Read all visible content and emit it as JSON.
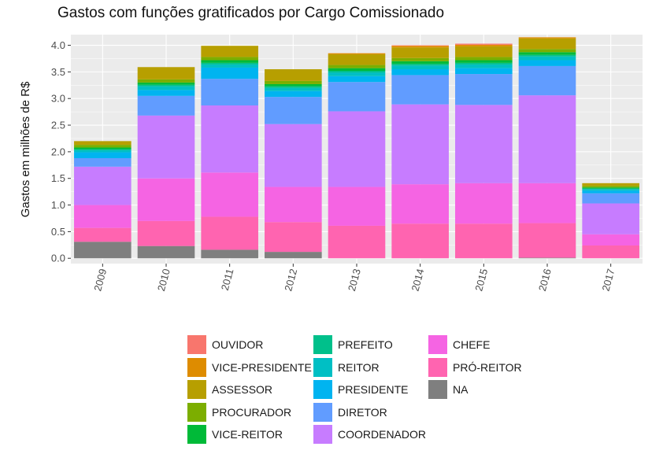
{
  "chart_data": {
    "type": "bar",
    "stacked": true,
    "title": "Gastos com funções gratificados por Cargo Comissionado",
    "xlabel": "",
    "ylabel": "Gastos em milhões de R$",
    "ylim": [
      -0.1,
      4.2
    ],
    "yticks": [
      "0.0",
      "0.5",
      "1.0",
      "1.5",
      "2.0",
      "2.5",
      "3.0",
      "3.5",
      "4.0"
    ],
    "categories": [
      "2009",
      "2010",
      "2011",
      "2012",
      "2013",
      "2014",
      "2015",
      "2016",
      "2017"
    ],
    "grid": true,
    "legend_position": "bottom",
    "series": [
      {
        "name": "OUVIDOR",
        "color": "#F8766D",
        "values": [
          0,
          0,
          0,
          0,
          0,
          0.01,
          0.02,
          0,
          0
        ]
      },
      {
        "name": "VICE-PRESIDENTE",
        "color": "#DE8C00",
        "values": [
          0,
          0,
          0,
          0,
          0.02,
          0.03,
          0.03,
          0.02,
          0
        ]
      },
      {
        "name": "ASSESSOR",
        "color": "#B79F00",
        "values": [
          0.07,
          0.23,
          0.21,
          0.22,
          0.2,
          0.2,
          0.2,
          0.2,
          0.05
        ]
      },
      {
        "name": "PROCURADOR",
        "color": "#7CAE00",
        "values": [
          0.05,
          0.06,
          0.06,
          0.06,
          0.06,
          0.06,
          0.06,
          0.06,
          0.03
        ]
      },
      {
        "name": "VICE-REITOR",
        "color": "#00BA38",
        "values": [
          0.03,
          0.04,
          0.05,
          0.04,
          0.05,
          0.05,
          0.05,
          0.05,
          0.02
        ]
      },
      {
        "name": "PREFEITO",
        "color": "#00C08B",
        "values": [
          0.02,
          0.03,
          0.03,
          0.03,
          0.03,
          0.03,
          0.03,
          0.03,
          0.01
        ]
      },
      {
        "name": "REITOR",
        "color": "#00BFC4",
        "values": [
          0.04,
          0.07,
          0.06,
          0.06,
          0.07,
          0.07,
          0.07,
          0.07,
          0.03
        ]
      },
      {
        "name": "PRESIDENTE",
        "color": "#00B4F0",
        "values": [
          0.11,
          0.11,
          0.21,
          0.11,
          0.11,
          0.11,
          0.11,
          0.11,
          0.05
        ]
      },
      {
        "name": "DIRETOR",
        "color": "#619CFF",
        "values": [
          0.16,
          0.37,
          0.5,
          0.51,
          0.55,
          0.55,
          0.58,
          0.55,
          0.19
        ]
      },
      {
        "name": "COORDENADOR",
        "color": "#C77CFF",
        "values": [
          0.72,
          1.18,
          1.26,
          1.18,
          1.42,
          1.5,
          1.47,
          1.65,
          0.58
        ]
      },
      {
        "name": "CHEFE",
        "color": "#F564E3",
        "values": [
          0.43,
          0.8,
          0.83,
          0.66,
          0.73,
          0.74,
          0.76,
          0.75,
          0.21
        ]
      },
      {
        "name": "PRÓ-REITOR",
        "color": "#FF64B0",
        "values": [
          0.26,
          0.47,
          0.62,
          0.56,
          0.61,
          0.65,
          0.65,
          0.65,
          0.24
        ]
      },
      {
        "name": "NA",
        "color": "#7F7F7F",
        "values": [
          0.31,
          0.23,
          0.16,
          0.12,
          0,
          0,
          0,
          0.01,
          0
        ]
      }
    ]
  }
}
